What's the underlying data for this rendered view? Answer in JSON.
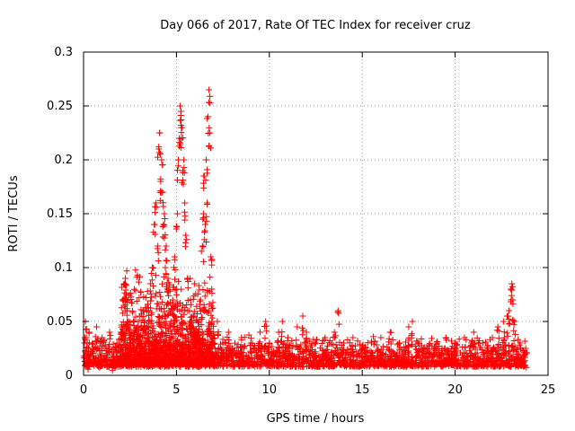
{
  "chart_data": {
    "type": "scatter",
    "title": "Day 066 of 2017, Rate Of TEC Index for receiver cruz",
    "xlabel": "GPS time / hours",
    "ylabel": "ROTI / TECUs",
    "xlim": [
      0,
      25
    ],
    "ylim": [
      0,
      0.3
    ],
    "x_ticks": [
      0,
      5,
      10,
      15,
      20,
      25
    ],
    "x_tick_labels": [
      "0",
      "5",
      "10",
      "15",
      "20",
      "25"
    ],
    "y_ticks": [
      0,
      0.05,
      0.1,
      0.15,
      0.2,
      0.25,
      0.3
    ],
    "y_tick_labels": [
      "0",
      "0.05",
      "0.1",
      "0.15",
      "0.2",
      "0.25",
      "0.3"
    ],
    "grid": true,
    "marker": "+",
    "series": [
      {
        "name": "ROTI",
        "color": "#ff0000",
        "x": [
          0.05,
          0.1,
          0.15,
          0.2,
          0.3,
          0.5,
          0.7,
          0.9,
          1.0,
          1.2,
          1.4,
          1.6,
          1.8,
          2.0,
          2.1,
          2.2,
          2.25,
          2.3,
          2.35,
          2.4,
          2.5,
          2.7,
          2.9,
          3.1,
          3.3,
          3.5,
          3.6,
          3.7,
          3.8,
          3.9,
          4.0,
          4.05,
          4.1,
          4.15,
          4.2,
          4.25,
          4.3,
          4.35,
          4.4,
          4.45,
          4.5,
          4.55,
          4.6,
          4.7,
          4.8,
          4.9,
          5.0,
          5.05,
          5.1,
          5.15,
          5.2,
          5.25,
          5.3,
          5.35,
          5.4,
          5.45,
          5.5,
          5.6,
          5.7,
          5.8,
          5.9,
          6.0,
          6.1,
          6.2,
          6.3,
          6.4,
          6.45,
          6.5,
          6.55,
          6.6,
          6.65,
          6.7,
          6.75,
          6.8,
          6.85,
          6.9,
          7.0,
          7.2,
          7.5,
          7.8,
          8.0,
          8.5,
          9.0,
          9.5,
          9.8,
          10.0,
          10.5,
          10.7,
          11.0,
          11.5,
          11.8,
          12.0,
          12.5,
          13.0,
          13.5,
          13.7,
          14.0,
          14.5,
          15.0,
          15.5,
          16.0,
          16.5,
          17.0,
          17.5,
          17.7,
          18.0,
          18.5,
          19.0,
          19.5,
          20.0,
          20.5,
          21.0,
          21.5,
          22.0,
          22.3,
          22.6,
          22.8,
          22.9,
          23.0,
          23.05,
          23.1,
          23.2,
          23.5,
          23.8
        ],
        "y": [
          0.03,
          0.05,
          0.035,
          0.02,
          0.04,
          0.03,
          0.045,
          0.02,
          0.035,
          0.025,
          0.04,
          0.02,
          0.03,
          0.04,
          0.07,
          0.085,
          0.09,
          0.075,
          0.06,
          0.05,
          0.035,
          0.04,
          0.045,
          0.03,
          0.05,
          0.06,
          0.085,
          0.1,
          0.14,
          0.16,
          0.12,
          0.21,
          0.225,
          0.18,
          0.2,
          0.17,
          0.14,
          0.15,
          0.1,
          0.12,
          0.08,
          0.09,
          0.06,
          0.05,
          0.07,
          0.11,
          0.08,
          0.15,
          0.2,
          0.22,
          0.25,
          0.245,
          0.23,
          0.19,
          0.2,
          0.16,
          0.13,
          0.09,
          0.06,
          0.05,
          0.045,
          0.04,
          0.035,
          0.05,
          0.07,
          0.12,
          0.15,
          0.185,
          0.14,
          0.2,
          0.16,
          0.24,
          0.265,
          0.225,
          0.11,
          0.08,
          0.04,
          0.05,
          0.03,
          0.04,
          0.025,
          0.035,
          0.03,
          0.04,
          0.05,
          0.03,
          0.04,
          0.05,
          0.035,
          0.045,
          0.055,
          0.04,
          0.03,
          0.035,
          0.04,
          0.06,
          0.03,
          0.035,
          0.025,
          0.03,
          0.035,
          0.04,
          0.03,
          0.045,
          0.05,
          0.03,
          0.025,
          0.03,
          0.035,
          0.03,
          0.035,
          0.04,
          0.03,
          0.035,
          0.045,
          0.05,
          0.055,
          0.06,
          0.08,
          0.085,
          0.07,
          0.05,
          0.03,
          0.025
        ],
        "baseline_band": [
          0.008,
          0.035
        ]
      }
    ]
  }
}
